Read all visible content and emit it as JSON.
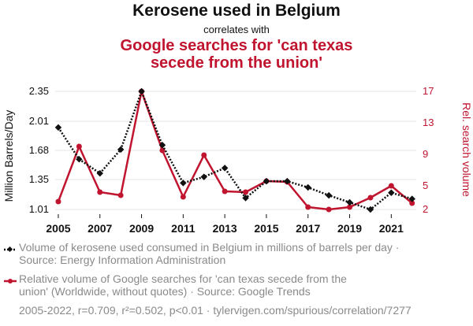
{
  "header": {
    "title": "Kerosene used in Belgium",
    "connector": "correlates with",
    "subtitle_line1": "Google searches for 'can texas",
    "subtitle_line2": "secede from the union'"
  },
  "legend": {
    "series1_line1": "Volume of kerosene used consumed in Belgium in millions of barrels per day ·",
    "series1_line2": "Source: Energy Information Administration",
    "series2_line1": "Relative volume of Google searches for 'can texas secede from the",
    "series2_line2": "union' (Worldwide, without quotes) · Source: Google Trends"
  },
  "footer": "2005-2022, r=0.709, r²=0.502, p<0.01 · tylervigen.com/spurious/correlation/7277",
  "colors": {
    "series1": "#111111",
    "series2": "#c0142f",
    "grid": "#e6e6e6"
  },
  "chart_data": {
    "type": "line",
    "x": [
      2005,
      2006,
      2007,
      2008,
      2009,
      2010,
      2011,
      2012,
      2013,
      2014,
      2015,
      2016,
      2017,
      2018,
      2019,
      2020,
      2021,
      2022
    ],
    "xticks": [
      "2005",
      "2007",
      "2009",
      "2011",
      "2013",
      "2015",
      "2017",
      "2019",
      "2021"
    ],
    "xlim": [
      2004.85,
      2022.2
    ],
    "ylabel_left": "Million Barrels/Day",
    "ylabel_right": "Rel. search volume",
    "yticks_left": [
      "1.01",
      "1.35",
      "1.68",
      "2.01",
      "2.35"
    ],
    "yticks_right": [
      "2",
      "5",
      "9",
      "13",
      "17"
    ],
    "ylim_left": [
      1.01,
      2.35
    ],
    "ylim_right": [
      2,
      17
    ],
    "grid": true,
    "series": [
      {
        "axis": "left",
        "style": "dotted-diamond",
        "values": [
          1.94,
          1.58,
          1.42,
          1.69,
          2.35,
          1.74,
          1.31,
          1.38,
          1.48,
          1.14,
          1.33,
          1.33,
          1.26,
          1.17,
          1.09,
          1.01,
          1.2,
          1.13
        ]
      },
      {
        "axis": "right",
        "style": "solid-circle",
        "values": [
          3,
          10,
          4.2,
          3.8,
          17,
          9.5,
          3.6,
          8.9,
          4.3,
          4.2,
          5.6,
          5.5,
          2.3,
          2.0,
          2.3,
          3.5,
          5.0,
          2.8
        ]
      }
    ]
  }
}
